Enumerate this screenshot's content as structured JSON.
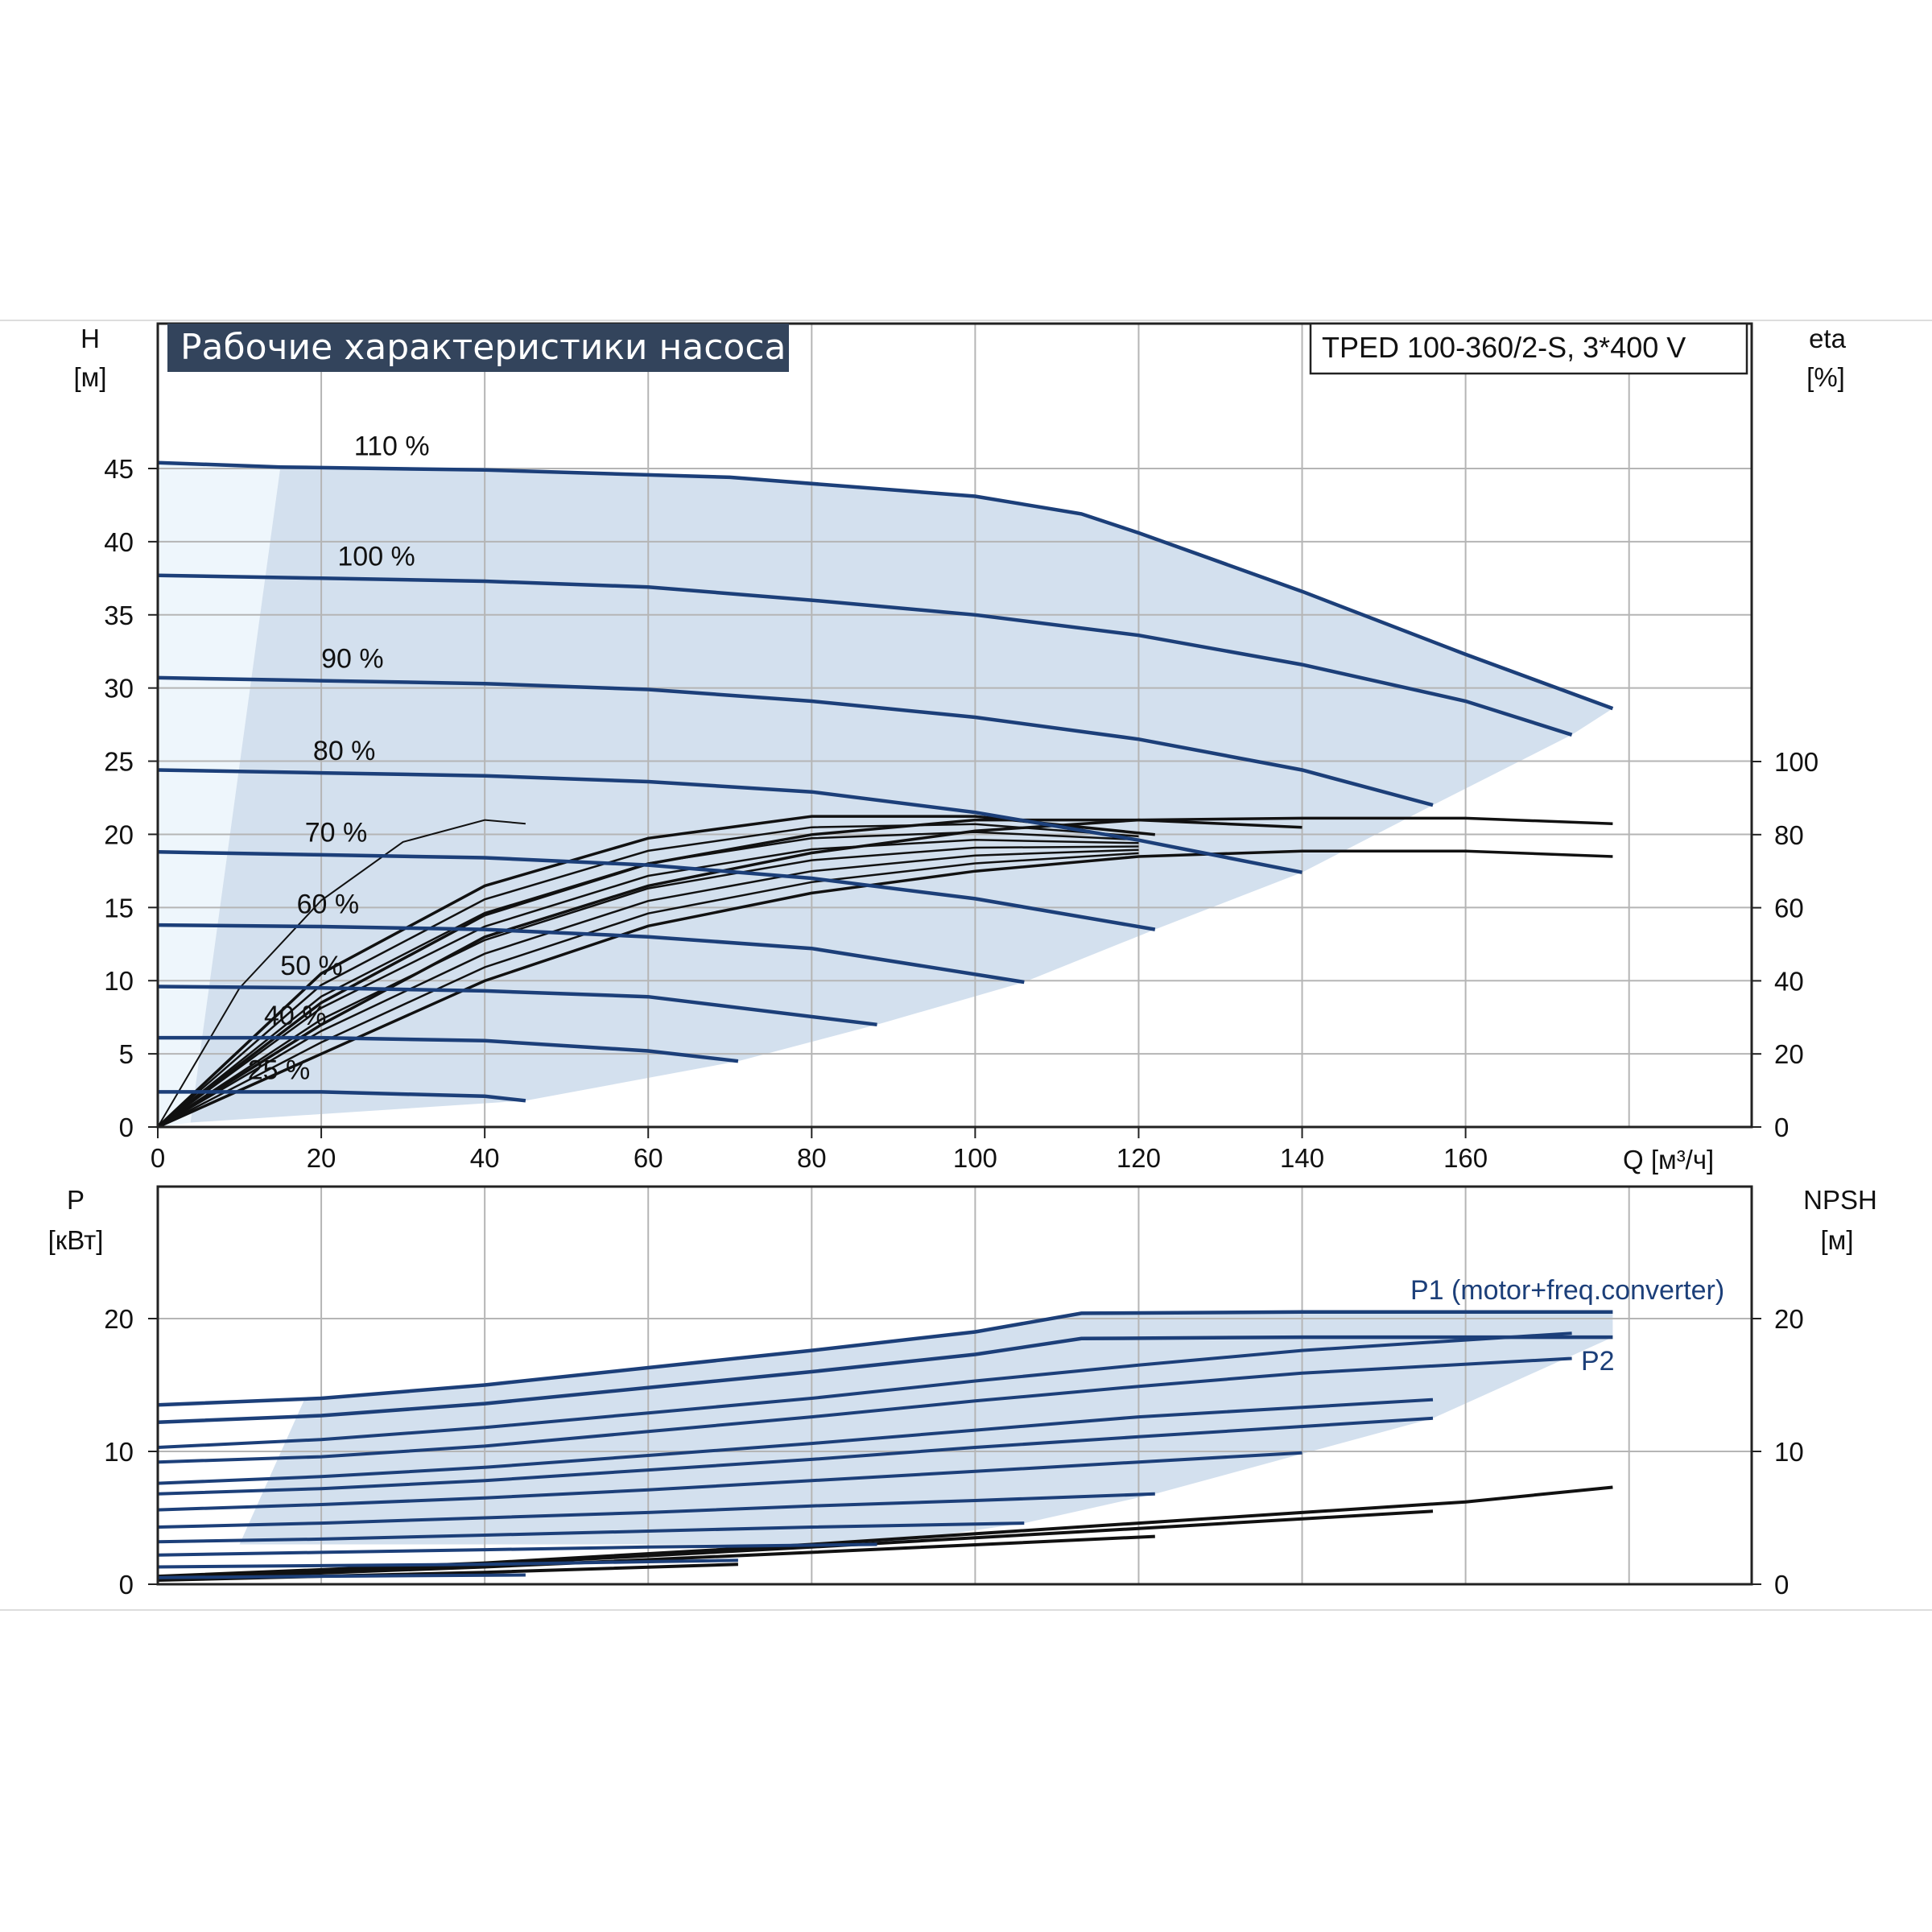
{
  "title": "Рабочие характеристики насоса",
  "model": "TPED 100-360/2-S, 3*400 V",
  "colors": {
    "curve": "#1c3f79",
    "region": "#d3e0ee",
    "region_light": "#eef6fc",
    "efficiency": "#111111",
    "grid": "#b5b5b5",
    "title_bg": "#33445c"
  },
  "chart_data": [
    {
      "type": "line",
      "name": "head",
      "xlim": [
        0,
        195
      ],
      "ylim": [
        0,
        50
      ],
      "y2lim": [
        0,
        220
      ],
      "x_ticks": [
        0,
        20,
        40,
        60,
        80,
        100,
        120,
        140,
        160
      ],
      "y_ticks": [
        0,
        5,
        10,
        15,
        20,
        25,
        30,
        35,
        40,
        45
      ],
      "y2_ticks": [
        0,
        20,
        40,
        60,
        80,
        100
      ],
      "x_tick_labels": [
        "0",
        "20",
        "40",
        "60",
        "80",
        "100",
        "120",
        "140",
        "160"
      ],
      "y_tick_labels": [
        "0",
        "5",
        "10",
        "15",
        "20",
        "25",
        "30",
        "35",
        "40",
        "45"
      ],
      "y2_tick_labels": [
        "0",
        "20",
        "40",
        "60",
        "80",
        "100"
      ],
      "ylabel": "H",
      "ylabel_unit": "[м]",
      "y2label": "eta",
      "y2label_unit": "[%]",
      "xlabel": "Q [м³/ч]",
      "grid": true,
      "series": [
        {
          "name": "110 %",
          "x": [
            0,
            15,
            40,
            70,
            100,
            113,
            120,
            140,
            160,
            178
          ],
          "y": [
            45.4,
            45.1,
            44.9,
            44.4,
            43.1,
            41.9,
            40.6,
            36.6,
            32.3,
            28.6
          ]
        },
        {
          "name": "100 %",
          "x": [
            0,
            20,
            40,
            60,
            80,
            100,
            120,
            140,
            160,
            173
          ],
          "y": [
            37.7,
            37.5,
            37.3,
            36.9,
            36.0,
            35.0,
            33.6,
            31.6,
            29.1,
            26.8
          ]
        },
        {
          "name": "90 %",
          "x": [
            0,
            20,
            40,
            60,
            80,
            100,
            120,
            140,
            156
          ],
          "y": [
            30.7,
            30.5,
            30.3,
            29.9,
            29.1,
            28.0,
            26.5,
            24.4,
            22.0
          ]
        },
        {
          "name": "80 %",
          "x": [
            0,
            20,
            40,
            60,
            80,
            100,
            120,
            140
          ],
          "y": [
            24.4,
            24.2,
            24.0,
            23.6,
            22.9,
            21.5,
            19.6,
            17.4
          ]
        },
        {
          "name": "70 %",
          "x": [
            0,
            20,
            40,
            60,
            80,
            100,
            122
          ],
          "y": [
            18.8,
            18.6,
            18.4,
            17.9,
            17.0,
            15.6,
            13.5
          ]
        },
        {
          "name": "60 %",
          "x": [
            0,
            20,
            40,
            60,
            80,
            106
          ],
          "y": [
            13.8,
            13.7,
            13.5,
            13.0,
            12.2,
            9.9
          ]
        },
        {
          "name": "50 %",
          "x": [
            0,
            20,
            40,
            60,
            88
          ],
          "y": [
            9.6,
            9.5,
            9.3,
            8.9,
            7.0
          ]
        },
        {
          "name": "40 %",
          "x": [
            0,
            20,
            40,
            60,
            71
          ],
          "y": [
            6.1,
            6.1,
            5.9,
            5.2,
            4.5
          ]
        },
        {
          "name": "25 %",
          "x": [
            0,
            20,
            40,
            45
          ],
          "y": [
            2.4,
            2.4,
            2.1,
            1.8
          ]
        }
      ],
      "efficiency_series": [
        {
          "x": [
            0,
            10,
            20,
            30,
            40,
            45
          ],
          "y": [
            0,
            38,
            62,
            78,
            84,
            83
          ]
        },
        {
          "x": [
            0,
            20,
            40,
            60,
            80,
            100,
            122
          ],
          "y": [
            0,
            42,
            66,
            79,
            85,
            85,
            80
          ]
        },
        {
          "x": [
            0,
            20,
            40,
            60,
            80,
            100,
            120,
            140
          ],
          "y": [
            0,
            34,
            58,
            72,
            80,
            84,
            84,
            82
          ]
        },
        {
          "x": [
            0,
            20,
            40,
            60,
            80,
            100,
            120,
            140,
            160,
            178
          ],
          "y": [
            0,
            28,
            52,
            66,
            75,
            81,
            84,
            84.5,
            84.5,
            83
          ]
        },
        {
          "x": [
            0,
            20,
            40,
            60,
            80,
            100,
            120,
            140,
            160,
            178
          ],
          "y": [
            0,
            20,
            40,
            55,
            64,
            70,
            74,
            75.5,
            75.5,
            74
          ]
        }
      ],
      "annotations": [
        "110 %",
        "100 %",
        "90 %",
        "80 %",
        "70 %",
        "60 %",
        "50 %",
        "40 %",
        "25 %"
      ]
    },
    {
      "type": "line",
      "name": "power",
      "xlim": [
        0,
        195
      ],
      "ylim": [
        0,
        30
      ],
      "y2lim": [
        0,
        30
      ],
      "y_ticks": [
        0,
        10,
        20
      ],
      "y2_ticks": [
        0,
        10,
        20
      ],
      "y_tick_labels": [
        "0",
        "10",
        "20"
      ],
      "y2_tick_labels": [
        "0",
        "10",
        "20"
      ],
      "ylabel": "P",
      "ylabel_unit": "[кВт]",
      "y2label": "NPSH",
      "y2label_unit": "[м]",
      "grid": true,
      "series": [
        {
          "name": "P1 (motor+freq.converter)",
          "x": [
            0,
            20,
            40,
            60,
            80,
            100,
            113,
            140,
            178
          ],
          "y": [
            13.5,
            14.0,
            15.0,
            16.3,
            17.6,
            19.0,
            20.4,
            20.5,
            20.5
          ]
        },
        {
          "name": "P2",
          "x": [
            0,
            20,
            40,
            60,
            80,
            100,
            113,
            140,
            178
          ],
          "y": [
            12.2,
            12.7,
            13.6,
            14.8,
            16.0,
            17.3,
            18.5,
            18.6,
            18.6
          ]
        },
        {
          "x": [
            0,
            20,
            40,
            60,
            80,
            100,
            120,
            140,
            173
          ],
          "y": [
            10.3,
            10.9,
            11.8,
            12.9,
            14.0,
            15.3,
            16.5,
            17.6,
            18.9
          ]
        },
        {
          "x": [
            0,
            20,
            40,
            60,
            80,
            100,
            120,
            140,
            173
          ],
          "y": [
            9.2,
            9.6,
            10.4,
            11.5,
            12.6,
            13.8,
            14.9,
            15.9,
            17.0
          ]
        },
        {
          "x": [
            0,
            20,
            40,
            60,
            80,
            100,
            120,
            156
          ],
          "y": [
            7.6,
            8.1,
            8.8,
            9.7,
            10.6,
            11.6,
            12.6,
            13.9
          ]
        },
        {
          "x": [
            0,
            20,
            40,
            60,
            80,
            100,
            120,
            156
          ],
          "y": [
            6.8,
            7.2,
            7.8,
            8.6,
            9.4,
            10.3,
            11.1,
            12.5
          ]
        },
        {
          "x": [
            0,
            20,
            40,
            60,
            80,
            100,
            120,
            140
          ],
          "y": [
            5.6,
            6.0,
            6.5,
            7.1,
            7.8,
            8.5,
            9.2,
            9.9
          ]
        },
        {
          "x": [
            0,
            20,
            40,
            60,
            80,
            100,
            122
          ],
          "y": [
            4.3,
            4.6,
            5.0,
            5.4,
            5.9,
            6.3,
            6.8
          ]
        },
        {
          "x": [
            0,
            20,
            40,
            60,
            80,
            106
          ],
          "y": [
            3.2,
            3.4,
            3.7,
            4.0,
            4.3,
            4.6
          ]
        },
        {
          "x": [
            0,
            20,
            40,
            60,
            88
          ],
          "y": [
            2.2,
            2.4,
            2.6,
            2.8,
            3.0
          ]
        },
        {
          "x": [
            0,
            20,
            40,
            60,
            71
          ],
          "y": [
            1.3,
            1.4,
            1.5,
            1.7,
            1.8
          ]
        },
        {
          "x": [
            0,
            20,
            45
          ],
          "y": [
            0.5,
            0.6,
            0.7
          ]
        }
      ],
      "npsh_series": [
        {
          "x": [
            0,
            40,
            80,
            120,
            140,
            160,
            178
          ],
          "y": [
            0.6,
            1.6,
            3.0,
            4.6,
            5.4,
            6.2,
            7.3
          ]
        },
        {
          "x": [
            0,
            40,
            80,
            120,
            156
          ],
          "y": [
            0.5,
            1.5,
            2.8,
            4.2,
            5.5
          ]
        },
        {
          "x": [
            0,
            40,
            80,
            122
          ],
          "y": [
            0.4,
            1.3,
            2.4,
            3.6
          ]
        },
        {
          "x": [
            0,
            40,
            71
          ],
          "y": [
            0.3,
            0.9,
            1.5
          ]
        }
      ]
    }
  ]
}
